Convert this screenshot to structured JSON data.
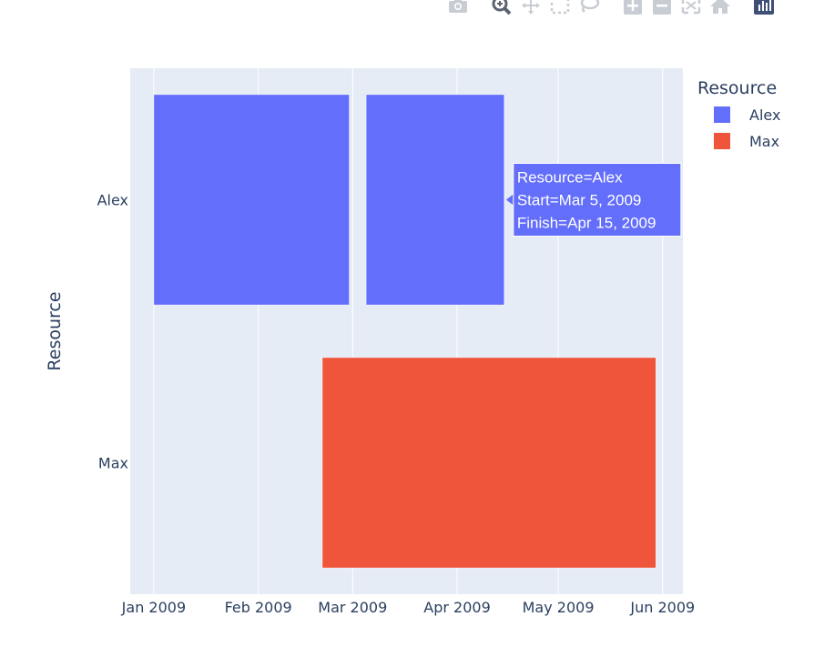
{
  "toolbar": {
    "icons": [
      "camera-icon",
      "zoom-icon",
      "pan-icon",
      "box-select-icon",
      "lasso-select-icon",
      "zoom-in-icon",
      "zoom-out-icon",
      "autoscale-icon",
      "reset-axes-icon",
      "plotly-logo-icon"
    ]
  },
  "chart_data": {
    "type": "timeline",
    "ylabel": "Resource",
    "xlabel": "",
    "x_type": "date",
    "xlim": [
      "2008-12-25",
      "2009-06-07"
    ],
    "x_ticks": [
      "2009-01-01",
      "2009-02-01",
      "2009-03-01",
      "2009-04-01",
      "2009-05-01",
      "2009-06-01"
    ],
    "x_tick_labels": [
      "Jan 2009",
      "Feb 2009",
      "Mar 2009",
      "Apr 2009",
      "May 2009",
      "Jun 2009"
    ],
    "categories": [
      "Alex",
      "Max"
    ],
    "legend": {
      "title": "Resource",
      "position": "top-right"
    },
    "grid": true,
    "series": [
      {
        "name": "Alex",
        "color": "#636efa",
        "tasks": [
          {
            "start": "2009-01-01",
            "finish": "2009-02-28"
          },
          {
            "start": "2009-03-05",
            "finish": "2009-04-15"
          }
        ]
      },
      {
        "name": "Max",
        "color": "#ef553b",
        "tasks": [
          {
            "start": "2009-02-20",
            "finish": "2009-05-30"
          }
        ]
      }
    ],
    "hover": {
      "lines": [
        "Resource=Alex",
        "Start=Mar 5, 2009",
        "Finish=Apr 15, 2009"
      ],
      "series": "Alex",
      "task_index": 1
    }
  }
}
